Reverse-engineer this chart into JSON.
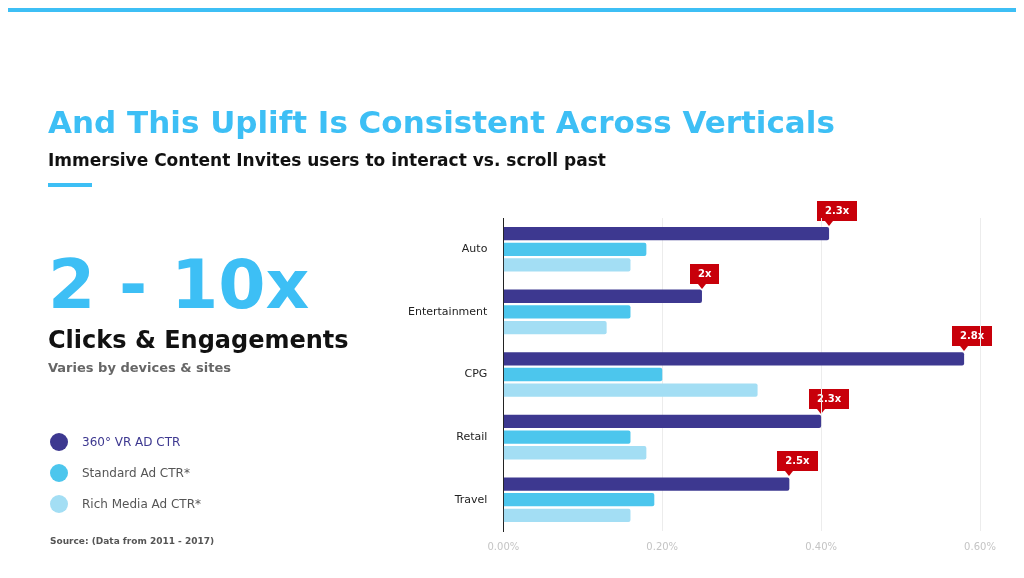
{
  "chart_data": {
    "type": "bar",
    "orientation": "horizontal",
    "title": "And This Uplift Is Consistent Across Verticals",
    "subtitle": "Immersive Content Invites users to interact vs. scroll past",
    "categories": [
      "Auto",
      "Entertainment",
      "CPG",
      "Retail",
      "Travel"
    ],
    "series": [
      {
        "name": "360° VR AD CTR",
        "color": "#3d3890",
        "values": [
          0.41,
          0.25,
          0.58,
          0.4,
          0.36
        ]
      },
      {
        "name": "Standard Ad CTR*",
        "color": "#4cc6ed",
        "values": [
          0.18,
          0.16,
          0.2,
          0.16,
          0.19
        ]
      },
      {
        "name": "Rich Media Ad CTR*",
        "color": "#a3def4",
        "values": [
          0.16,
          0.13,
          0.32,
          0.18,
          0.16
        ]
      }
    ],
    "xlim": [
      0,
      0.6
    ],
    "xticks": [
      {
        "value": 0,
        "label": "0.00%"
      },
      {
        "value": 0.2,
        "label": "0.20%"
      },
      {
        "value": 0.4,
        "label": "0.40%"
      },
      {
        "value": 0.6,
        "label": "0.60%"
      }
    ],
    "grid": "x",
    "legend": "left",
    "annotations": [
      "2 - 10x",
      "Clicks & Engagements",
      "Varies by devices & sites",
      "Source: (Data from 2011 - 2017)",
      "2.3x",
      "2x",
      "2.8x",
      "2.3x",
      "2.5x"
    ]
  }
}
